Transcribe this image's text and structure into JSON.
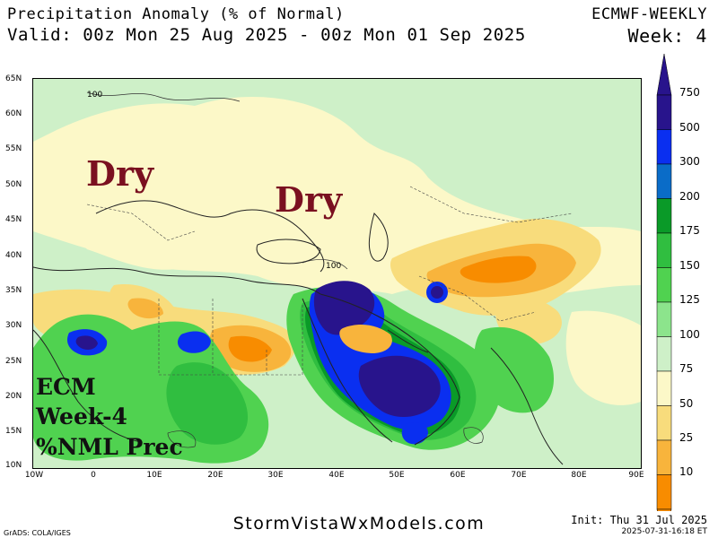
{
  "header": {
    "title": "Precipitation Anomaly (% of Normal)",
    "valid": "Valid: 00z Mon 25 Aug 2025 - 00z Mon 01 Sep 2025",
    "model": "ECMWF-WEEKLY",
    "week": "Week: 4"
  },
  "map": {
    "lat_labels": [
      "65N",
      "60N",
      "55N",
      "50N",
      "45N",
      "40N",
      "35N",
      "30N",
      "25N",
      "20N",
      "15N",
      "10N"
    ],
    "lon_labels": [
      "10W",
      "0",
      "10E",
      "20E",
      "30E",
      "40E",
      "50E",
      "60E",
      "70E",
      "80E",
      "90E"
    ],
    "contour_label": "100",
    "overlay_words": [
      "Dry",
      "Dry"
    ],
    "annotation_lines": [
      "ECM",
      "Week-4",
      "%NML Prec"
    ]
  },
  "colorbar": {
    "levels": [
      "750",
      "500",
      "300",
      "200",
      "175",
      "150",
      "125",
      "100",
      "75",
      "50",
      "25",
      "10"
    ],
    "colors": [
      "#28148c",
      "#0a2ff0",
      "#0a6cc8",
      "#0a9a28",
      "#30be40",
      "#50d250",
      "#8ce48c",
      "#cef0c8",
      "#fcf8c8",
      "#f8dc7c",
      "#f8b43c",
      "#f88c00"
    ]
  },
  "footer": {
    "site": "StormVistaWxModels.com",
    "credit": "GrADS: COLA/IGES",
    "init": "Init: Thu 31 Jul 2025",
    "stamp": "2025-07-31-16:18 ET"
  }
}
